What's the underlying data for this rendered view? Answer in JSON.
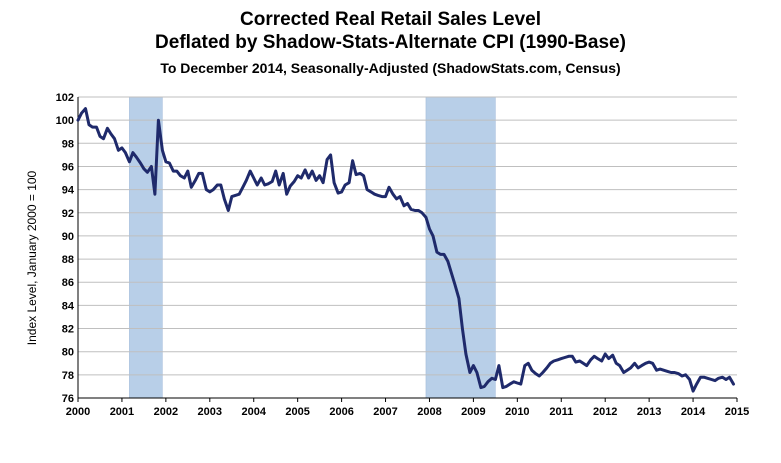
{
  "chart_data": {
    "type": "line",
    "title": "Corrected Real Retail Sales Level",
    "subtitle": "Deflated by Shadow-Stats-Alternate  CPI (1990-Base)",
    "subsubtitle": "To December 2014, Seasonally-Adjusted (ShadowStats.com, Census)",
    "xlabel": "",
    "ylabel": "Index Level, January 2000 = 100",
    "xlim": [
      2000,
      2015
    ],
    "ylim": [
      76,
      102
    ],
    "y_ticks": [
      "76",
      "78",
      "80",
      "82",
      "84",
      "86",
      "88",
      "90",
      "92",
      "94",
      "96",
      "98",
      "100",
      "102"
    ],
    "x_ticks": [
      "2000",
      "2001",
      "2002",
      "2003",
      "2004",
      "2005",
      "2006",
      "2007",
      "2008",
      "2009",
      "2010",
      "2011",
      "2012",
      "2013",
      "2014",
      "2015"
    ],
    "recession_shading": [
      [
        2001.17,
        2001.92
      ],
      [
        2007.92,
        2009.5
      ]
    ],
    "line_color": "#1f2a6b",
    "shade_color": "#b8cfe8",
    "grid": "horizontal",
    "series": [
      {
        "points": [
          [
            2000.0,
            100.0
          ],
          [
            2000.08,
            100.6
          ],
          [
            2000.17,
            101.0
          ],
          [
            2000.25,
            99.6
          ],
          [
            2000.33,
            99.4
          ],
          [
            2000.42,
            99.4
          ],
          [
            2000.5,
            98.6
          ],
          [
            2000.58,
            98.4
          ],
          [
            2000.67,
            99.3
          ],
          [
            2000.75,
            98.8
          ],
          [
            2000.83,
            98.4
          ],
          [
            2000.92,
            97.4
          ],
          [
            2001.0,
            97.6
          ],
          [
            2001.08,
            97.2
          ],
          [
            2001.17,
            96.4
          ],
          [
            2001.25,
            97.2
          ],
          [
            2001.33,
            96.8
          ],
          [
            2001.42,
            96.3
          ],
          [
            2001.5,
            95.8
          ],
          [
            2001.58,
            95.5
          ],
          [
            2001.67,
            96.0
          ],
          [
            2001.75,
            93.6
          ],
          [
            2001.83,
            100.0
          ],
          [
            2001.92,
            97.4
          ],
          [
            2002.0,
            96.4
          ],
          [
            2002.08,
            96.3
          ],
          [
            2002.17,
            95.6
          ],
          [
            2002.25,
            95.6
          ],
          [
            2002.33,
            95.2
          ],
          [
            2002.42,
            95.0
          ],
          [
            2002.5,
            95.6
          ],
          [
            2002.58,
            94.2
          ],
          [
            2002.67,
            94.8
          ],
          [
            2002.75,
            95.4
          ],
          [
            2002.83,
            95.4
          ],
          [
            2002.92,
            94.0
          ],
          [
            2003.0,
            93.8
          ],
          [
            2003.08,
            94.0
          ],
          [
            2003.17,
            94.4
          ],
          [
            2003.25,
            94.4
          ],
          [
            2003.33,
            93.2
          ],
          [
            2003.42,
            92.2
          ],
          [
            2003.5,
            93.4
          ],
          [
            2003.58,
            93.5
          ],
          [
            2003.67,
            93.6
          ],
          [
            2003.75,
            94.2
          ],
          [
            2003.83,
            94.8
          ],
          [
            2003.92,
            95.6
          ],
          [
            2004.0,
            95.0
          ],
          [
            2004.08,
            94.4
          ],
          [
            2004.17,
            95.0
          ],
          [
            2004.25,
            94.4
          ],
          [
            2004.33,
            94.5
          ],
          [
            2004.42,
            94.7
          ],
          [
            2004.5,
            95.6
          ],
          [
            2004.58,
            94.4
          ],
          [
            2004.67,
            95.4
          ],
          [
            2004.75,
            93.6
          ],
          [
            2004.83,
            94.3
          ],
          [
            2004.92,
            94.7
          ],
          [
            2005.0,
            95.2
          ],
          [
            2005.08,
            95.0
          ],
          [
            2005.17,
            95.7
          ],
          [
            2005.25,
            95.0
          ],
          [
            2005.33,
            95.6
          ],
          [
            2005.42,
            94.8
          ],
          [
            2005.5,
            95.2
          ],
          [
            2005.58,
            94.6
          ],
          [
            2005.67,
            96.6
          ],
          [
            2005.75,
            97.0
          ],
          [
            2005.83,
            94.6
          ],
          [
            2005.92,
            93.7
          ],
          [
            2006.0,
            93.8
          ],
          [
            2006.08,
            94.4
          ],
          [
            2006.17,
            94.6
          ],
          [
            2006.25,
            96.5
          ],
          [
            2006.33,
            95.3
          ],
          [
            2006.42,
            95.4
          ],
          [
            2006.5,
            95.2
          ],
          [
            2006.58,
            94.0
          ],
          [
            2006.67,
            93.8
          ],
          [
            2006.75,
            93.6
          ],
          [
            2006.83,
            93.5
          ],
          [
            2006.92,
            93.4
          ],
          [
            2007.0,
            93.4
          ],
          [
            2007.08,
            94.2
          ],
          [
            2007.17,
            93.6
          ],
          [
            2007.25,
            93.2
          ],
          [
            2007.33,
            93.4
          ],
          [
            2007.42,
            92.6
          ],
          [
            2007.5,
            92.8
          ],
          [
            2007.58,
            92.3
          ],
          [
            2007.67,
            92.2
          ],
          [
            2007.75,
            92.2
          ],
          [
            2007.83,
            92.0
          ],
          [
            2007.92,
            91.6
          ],
          [
            2008.0,
            90.6
          ],
          [
            2008.08,
            90.0
          ],
          [
            2008.17,
            88.6
          ],
          [
            2008.25,
            88.4
          ],
          [
            2008.33,
            88.4
          ],
          [
            2008.42,
            87.8
          ],
          [
            2008.5,
            86.8
          ],
          [
            2008.58,
            85.8
          ],
          [
            2008.67,
            84.6
          ],
          [
            2008.75,
            82.0
          ],
          [
            2008.83,
            79.8
          ],
          [
            2008.92,
            78.2
          ],
          [
            2009.0,
            78.8
          ],
          [
            2009.08,
            78.2
          ],
          [
            2009.17,
            76.9
          ],
          [
            2009.25,
            77.0
          ],
          [
            2009.33,
            77.4
          ],
          [
            2009.42,
            77.7
          ],
          [
            2009.5,
            77.6
          ],
          [
            2009.58,
            78.8
          ],
          [
            2009.67,
            76.9
          ],
          [
            2009.75,
            77.0
          ],
          [
            2009.83,
            77.2
          ],
          [
            2009.92,
            77.4
          ],
          [
            2010.0,
            77.3
          ],
          [
            2010.08,
            77.2
          ],
          [
            2010.17,
            78.8
          ],
          [
            2010.25,
            79.0
          ],
          [
            2010.33,
            78.4
          ],
          [
            2010.42,
            78.1
          ],
          [
            2010.5,
            77.9
          ],
          [
            2010.58,
            78.2
          ],
          [
            2010.67,
            78.6
          ],
          [
            2010.75,
            79.0
          ],
          [
            2010.83,
            79.2
          ],
          [
            2010.92,
            79.3
          ],
          [
            2011.0,
            79.4
          ],
          [
            2011.08,
            79.5
          ],
          [
            2011.17,
            79.6
          ],
          [
            2011.25,
            79.6
          ],
          [
            2011.33,
            79.1
          ],
          [
            2011.42,
            79.2
          ],
          [
            2011.5,
            79.0
          ],
          [
            2011.58,
            78.8
          ],
          [
            2011.67,
            79.3
          ],
          [
            2011.75,
            79.6
          ],
          [
            2011.83,
            79.4
          ],
          [
            2011.92,
            79.2
          ],
          [
            2012.0,
            79.8
          ],
          [
            2012.08,
            79.4
          ],
          [
            2012.17,
            79.7
          ],
          [
            2012.25,
            79.0
          ],
          [
            2012.33,
            78.8
          ],
          [
            2012.42,
            78.2
          ],
          [
            2012.5,
            78.4
          ],
          [
            2012.58,
            78.6
          ],
          [
            2012.67,
            79.0
          ],
          [
            2012.75,
            78.6
          ],
          [
            2012.83,
            78.8
          ],
          [
            2012.92,
            79.0
          ],
          [
            2013.0,
            79.1
          ],
          [
            2013.08,
            79.0
          ],
          [
            2013.17,
            78.4
          ],
          [
            2013.25,
            78.5
          ],
          [
            2013.33,
            78.4
          ],
          [
            2013.42,
            78.3
          ],
          [
            2013.5,
            78.2
          ],
          [
            2013.58,
            78.2
          ],
          [
            2013.67,
            78.1
          ],
          [
            2013.75,
            77.9
          ],
          [
            2013.83,
            78.0
          ],
          [
            2013.92,
            77.6
          ],
          [
            2014.0,
            76.6
          ],
          [
            2014.08,
            77.2
          ],
          [
            2014.17,
            77.8
          ],
          [
            2014.25,
            77.8
          ],
          [
            2014.33,
            77.7
          ],
          [
            2014.42,
            77.6
          ],
          [
            2014.5,
            77.5
          ],
          [
            2014.58,
            77.7
          ],
          [
            2014.67,
            77.8
          ],
          [
            2014.75,
            77.6
          ],
          [
            2014.83,
            77.8
          ],
          [
            2014.92,
            77.2
          ]
        ]
      }
    ]
  }
}
